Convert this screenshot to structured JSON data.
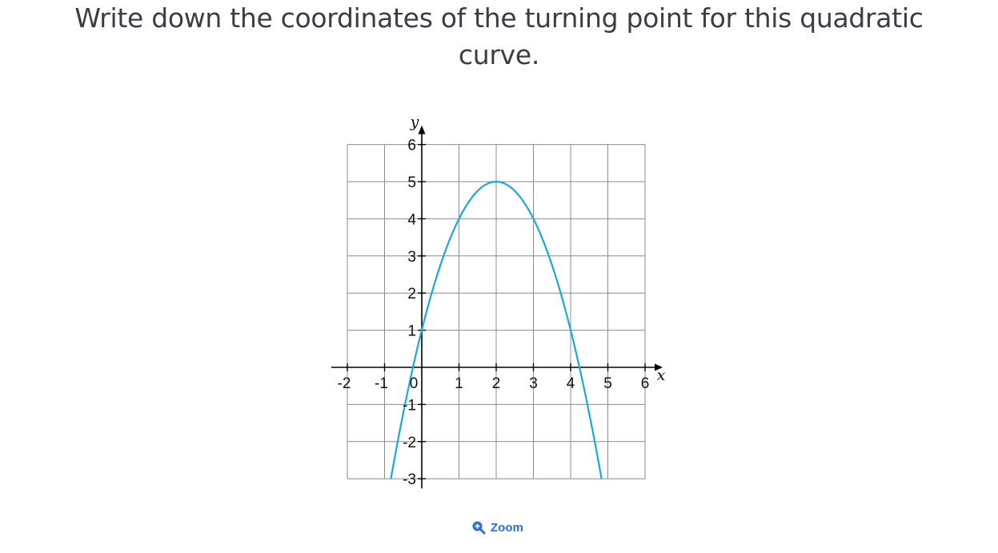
{
  "question": {
    "line1": "Write down the coordinates of the turning point for this quadratic",
    "line2": "curve."
  },
  "zoom": {
    "label": "Zoom",
    "icon": "zoom-in-icon"
  },
  "colors": {
    "curve": "#1ba7dd",
    "grid": "#8c8c8c",
    "axis": "#000000",
    "zoom": "#2b6cd6"
  },
  "chart_data": {
    "type": "line",
    "title": "",
    "xlabel": "x",
    "ylabel": "y",
    "xlim": [
      -2,
      6
    ],
    "ylim": [
      -3,
      6
    ],
    "x_ticks": [
      -2,
      -1,
      0,
      1,
      2,
      3,
      4,
      5,
      6
    ],
    "y_ticks": [
      -3,
      -2,
      -1,
      1,
      2,
      3,
      4,
      5,
      6
    ],
    "x_tick_labels": [
      "-2",
      "-1",
      "0",
      "1",
      "2",
      "3",
      "4",
      "5",
      "6"
    ],
    "y_tick_labels": [
      "-3",
      "-2",
      "-1",
      "1",
      "2",
      "3",
      "4",
      "5",
      "6"
    ],
    "grid": true,
    "series": [
      {
        "function": "y = -(x - 2)^2 + 5",
        "turning_point": [
          2,
          5
        ],
        "x": [
          -0.83,
          -0.5,
          0,
          0.5,
          1,
          1.5,
          2,
          2.5,
          3,
          3.5,
          4,
          4.5,
          4.83
        ],
        "y": [
          -3,
          -1.25,
          1,
          2.75,
          4,
          4.75,
          5,
          4.75,
          4,
          2.75,
          1,
          -1.25,
          -3
        ]
      }
    ]
  }
}
